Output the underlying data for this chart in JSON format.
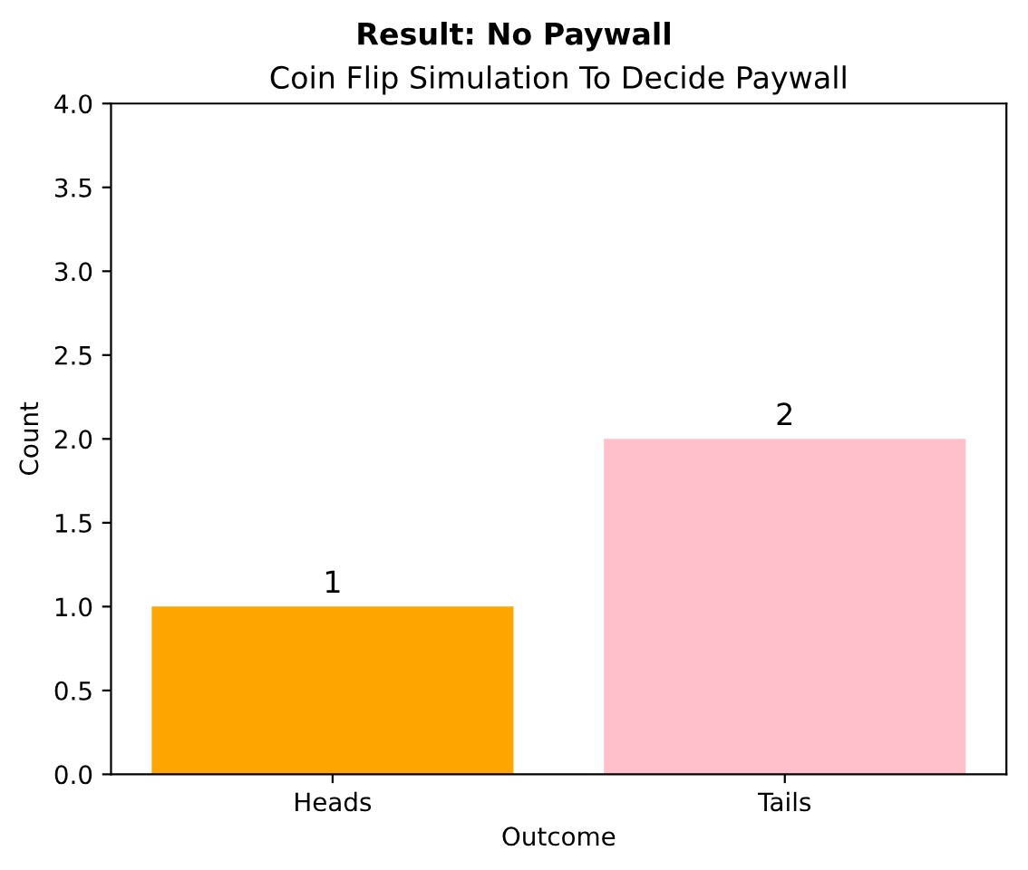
{
  "chart_data": {
    "type": "bar",
    "title": "Result: No Paywall",
    "subtitle": "Coin Flip Simulation To Decide Paywall",
    "xlabel": "Outcome",
    "ylabel": "Count",
    "categories": [
      "Heads",
      "Tails"
    ],
    "values": [
      1,
      2
    ],
    "colors": [
      "#ffa500",
      "#ffc0cb"
    ],
    "ylim": [
      0,
      4
    ],
    "yticks": [
      {
        "value": 0,
        "label": "0.0"
      },
      0.5,
      {
        "value": 1,
        "label": "1.0"
      },
      1.5,
      {
        "value": 2,
        "label": "2.0"
      },
      2.5,
      {
        "value": 3,
        "label": "3.0"
      },
      3.5,
      {
        "value": 4,
        "label": "4.0"
      }
    ],
    "data_labels": true,
    "grid": false,
    "legend": false
  }
}
